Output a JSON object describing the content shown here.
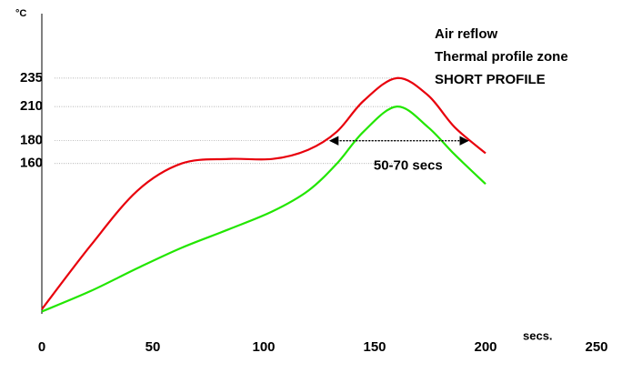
{
  "chart_data": {
    "type": "line",
    "title_lines": [
      "Air reflow",
      "Thermal profile zone",
      "SHORT PROFILE"
    ],
    "x_label": "secs.",
    "y_label": "°C",
    "xlim": [
      0,
      250
    ],
    "xticks": [
      0,
      50,
      100,
      150,
      200,
      250
    ],
    "ylim": [
      0,
      290
    ],
    "yticks": [
      160,
      180,
      210,
      235
    ],
    "grid": true,
    "series": [
      {
        "color": "#e8000c",
        "x": [
          0,
          22,
          43,
          63,
          84,
          104,
          120,
          133,
          145,
          160,
          174,
          186,
          200
        ],
        "values": [
          32,
          88,
          136,
          160,
          164,
          164,
          172,
          188,
          215,
          235,
          220,
          192,
          169
        ]
      },
      {
        "color": "#22e600",
        "x": [
          0,
          22,
          43,
          63,
          84,
          104,
          120,
          133,
          145,
          160,
          174,
          186,
          200
        ],
        "values": [
          30,
          48,
          68,
          86,
          102,
          118,
          136,
          160,
          188,
          210,
          192,
          168,
          142
        ]
      }
    ],
    "arrow": {
      "x": [
        130,
        192
      ],
      "y": 180,
      "label": "50-70 secs"
    }
  }
}
